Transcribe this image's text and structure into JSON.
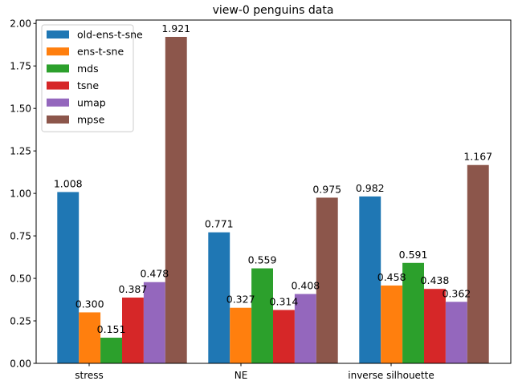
{
  "chart_data": {
    "type": "bar",
    "title": "view-0 penguins data",
    "categories": [
      "stress",
      "NE",
      "inverse silhouette"
    ],
    "series": [
      {
        "name": "old-ens-t-sne",
        "color": "#1f77b4",
        "values": [
          1.008,
          0.771,
          0.982
        ],
        "labels": [
          "1.008",
          "0.771",
          "0.982"
        ]
      },
      {
        "name": "ens-t-sne",
        "color": "#ff7f0e",
        "values": [
          0.3,
          0.327,
          0.458
        ],
        "labels": [
          "0.300",
          "0.327",
          "0.458"
        ]
      },
      {
        "name": "mds",
        "color": "#2ca02c",
        "values": [
          0.151,
          0.559,
          0.591
        ],
        "labels": [
          "0.151",
          "0.559",
          "0.591"
        ]
      },
      {
        "name": "tsne",
        "color": "#d62728",
        "values": [
          0.387,
          0.314,
          0.438
        ],
        "labels": [
          "0.387",
          "0.314",
          "0.438"
        ]
      },
      {
        "name": "umap",
        "color": "#9467bd",
        "values": [
          0.478,
          0.408,
          0.362
        ],
        "labels": [
          "0.478",
          "0.408",
          "0.362"
        ]
      },
      {
        "name": "mpse",
        "color": "#8c564b",
        "values": [
          1.921,
          0.975,
          1.167
        ],
        "labels": [
          "1.921",
          "0.975",
          "1.167"
        ]
      }
    ],
    "ylim": [
      0,
      2.02
    ],
    "yticks": [
      0.0,
      0.25,
      0.5,
      0.75,
      1.0,
      1.25,
      1.5,
      1.75,
      2.0
    ],
    "ytick_labels": [
      "0.00",
      "0.25",
      "0.50",
      "0.75",
      "1.00",
      "1.25",
      "1.50",
      "1.75",
      "2.00"
    ],
    "legend_position": "top-left",
    "grid": false
  }
}
